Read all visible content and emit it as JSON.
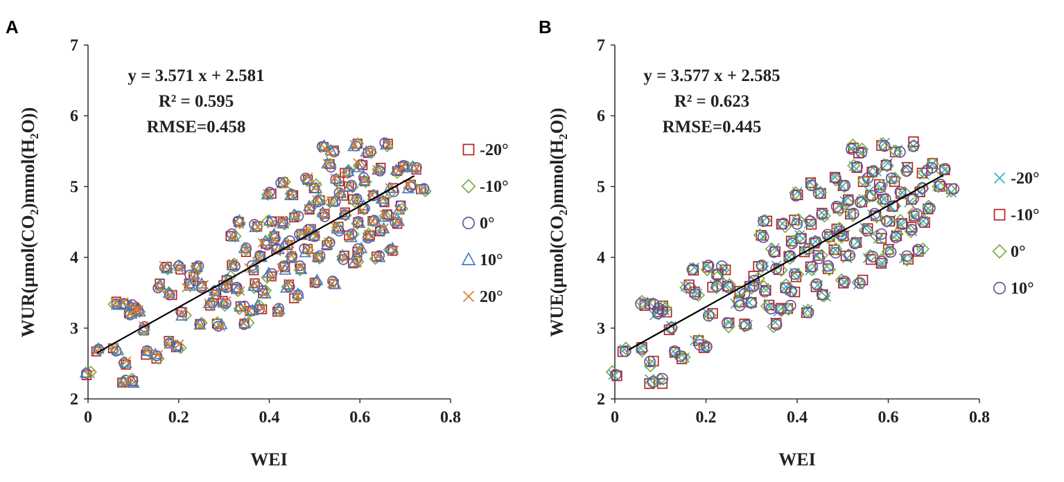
{
  "chart_data": [
    {
      "panel": "A",
      "type": "scatter",
      "xlabel": "WEI",
      "ylabel_parts": [
        "WUR(µmol(CO",
        "2",
        ")mmol(H",
        "2",
        "O))"
      ],
      "xlim": [
        0,
        0.8
      ],
      "ylim": [
        2,
        7
      ],
      "xticks": [
        "0",
        "0.2",
        "0.4",
        "0.6",
        "0.8"
      ],
      "yticks": [
        "2",
        "3",
        "4",
        "5",
        "6",
        "7"
      ],
      "annotations": [
        "y = 3.571 x + 2.581",
        "R² = 0.595",
        "RMSE=0.458"
      ],
      "fit": {
        "slope": 3.571,
        "intercept": 2.581,
        "x": [
          0.02,
          0.72
        ]
      },
      "series": [
        {
          "name": "-20°",
          "marker": "square",
          "color": "#b22222"
        },
        {
          "name": "-10°",
          "marker": "diamond",
          "color": "#77b040"
        },
        {
          "name": "0°",
          "marker": "circle",
          "color": "#6a4fa3"
        },
        {
          "name": "10°",
          "marker": "triangle",
          "color": "#3f7fc0"
        },
        {
          "name": "20°",
          "marker": "x",
          "color": "#e07b2a"
        }
      ],
      "points_base": [
        [
          0.0,
          2.35
        ],
        [
          0.02,
          2.7
        ],
        [
          0.06,
          3.35
        ],
        [
          0.06,
          2.7
        ],
        [
          0.08,
          2.25
        ],
        [
          0.08,
          2.5
        ],
        [
          0.08,
          3.35
        ],
        [
          0.09,
          3.2
        ],
        [
          0.1,
          2.25
        ],
        [
          0.1,
          3.3
        ],
        [
          0.11,
          3.25
        ],
        [
          0.12,
          3.0
        ],
        [
          0.13,
          2.65
        ],
        [
          0.15,
          2.6
        ],
        [
          0.16,
          3.6
        ],
        [
          0.17,
          3.85
        ],
        [
          0.18,
          3.5
        ],
        [
          0.18,
          2.8
        ],
        [
          0.2,
          2.75
        ],
        [
          0.2,
          3.85
        ],
        [
          0.21,
          3.2
        ],
        [
          0.22,
          3.6
        ],
        [
          0.23,
          3.75
        ],
        [
          0.24,
          3.85
        ],
        [
          0.25,
          3.6
        ],
        [
          0.25,
          3.05
        ],
        [
          0.27,
          3.35
        ],
        [
          0.28,
          3.5
        ],
        [
          0.29,
          3.05
        ],
        [
          0.3,
          3.6
        ],
        [
          0.3,
          3.35
        ],
        [
          0.31,
          3.7
        ],
        [
          0.32,
          4.3
        ],
        [
          0.32,
          3.9
        ],
        [
          0.33,
          4.5
        ],
        [
          0.33,
          3.55
        ],
        [
          0.34,
          3.3
        ],
        [
          0.35,
          4.1
        ],
        [
          0.35,
          3.05
        ],
        [
          0.36,
          3.85
        ],
        [
          0.36,
          3.25
        ],
        [
          0.37,
          4.45
        ],
        [
          0.37,
          3.6
        ],
        [
          0.38,
          4.0
        ],
        [
          0.38,
          3.3
        ],
        [
          0.39,
          4.2
        ],
        [
          0.39,
          3.5
        ],
        [
          0.4,
          4.9
        ],
        [
          0.4,
          4.5
        ],
        [
          0.4,
          3.75
        ],
        [
          0.41,
          4.3
        ],
        [
          0.42,
          4.1
        ],
        [
          0.42,
          3.25
        ],
        [
          0.43,
          5.05
        ],
        [
          0.43,
          4.5
        ],
        [
          0.43,
          3.85
        ],
        [
          0.44,
          4.2
        ],
        [
          0.44,
          3.6
        ],
        [
          0.45,
          4.9
        ],
        [
          0.45,
          4.0
        ],
        [
          0.46,
          4.6
        ],
        [
          0.46,
          3.45
        ],
        [
          0.47,
          4.3
        ],
        [
          0.47,
          3.85
        ],
        [
          0.48,
          5.1
        ],
        [
          0.48,
          4.1
        ],
        [
          0.49,
          4.7
        ],
        [
          0.49,
          4.4
        ],
        [
          0.5,
          5.0
        ],
        [
          0.5,
          4.3
        ],
        [
          0.5,
          3.65
        ],
        [
          0.51,
          4.8
        ],
        [
          0.51,
          4.0
        ],
        [
          0.52,
          5.55
        ],
        [
          0.52,
          4.6
        ],
        [
          0.53,
          5.3
        ],
        [
          0.53,
          4.2
        ],
        [
          0.54,
          5.5
        ],
        [
          0.54,
          4.8
        ],
        [
          0.54,
          3.65
        ],
        [
          0.55,
          5.1
        ],
        [
          0.55,
          4.4
        ],
        [
          0.56,
          4.9
        ],
        [
          0.56,
          4.0
        ],
        [
          0.57,
          5.2
        ],
        [
          0.57,
          4.6
        ],
        [
          0.58,
          5.0
        ],
        [
          0.58,
          4.3
        ],
        [
          0.59,
          5.6
        ],
        [
          0.59,
          4.8
        ],
        [
          0.59,
          3.95
        ],
        [
          0.6,
          5.3
        ],
        [
          0.6,
          4.5
        ],
        [
          0.6,
          4.1
        ],
        [
          0.61,
          5.1
        ],
        [
          0.61,
          4.7
        ],
        [
          0.62,
          5.5
        ],
        [
          0.62,
          4.3
        ],
        [
          0.63,
          4.9
        ],
        [
          0.63,
          4.5
        ],
        [
          0.64,
          5.25
        ],
        [
          0.64,
          4.0
        ],
        [
          0.65,
          4.8
        ],
        [
          0.65,
          4.4
        ],
        [
          0.66,
          5.6
        ],
        [
          0.66,
          4.6
        ],
        [
          0.67,
          4.95
        ],
        [
          0.67,
          4.1
        ],
        [
          0.68,
          5.2
        ],
        [
          0.68,
          4.5
        ],
        [
          0.69,
          4.7
        ],
        [
          0.7,
          5.3
        ],
        [
          0.71,
          5.0
        ],
        [
          0.72,
          5.25
        ],
        [
          0.74,
          4.95
        ]
      ]
    },
    {
      "panel": "B",
      "type": "scatter",
      "xlabel": "WEI",
      "ylabel_parts": [
        "WUE(µmol(CO",
        "2",
        ")mmol(H",
        "2",
        "O))"
      ],
      "xlim": [
        0,
        0.8
      ],
      "ylim": [
        2,
        7
      ],
      "xticks": [
        "0",
        "0.2",
        "0.4",
        "0.6",
        "0.8"
      ],
      "yticks": [
        "2",
        "3",
        "4",
        "5",
        "6",
        "7"
      ],
      "annotations": [
        "y = 3.577 x + 2.585",
        "R² = 0.623",
        "RMSE=0.445"
      ],
      "fit": {
        "slope": 3.577,
        "intercept": 2.585,
        "x": [
          0.03,
          0.72
        ]
      },
      "series": [
        {
          "name": "-20°",
          "marker": "x",
          "color": "#33b0c8"
        },
        {
          "name": "-10°",
          "marker": "square",
          "color": "#b22222"
        },
        {
          "name": "0°",
          "marker": "diamond",
          "color": "#77b040"
        },
        {
          "name": "10°",
          "marker": "circle",
          "color": "#6a4fa3"
        }
      ]
    }
  ]
}
